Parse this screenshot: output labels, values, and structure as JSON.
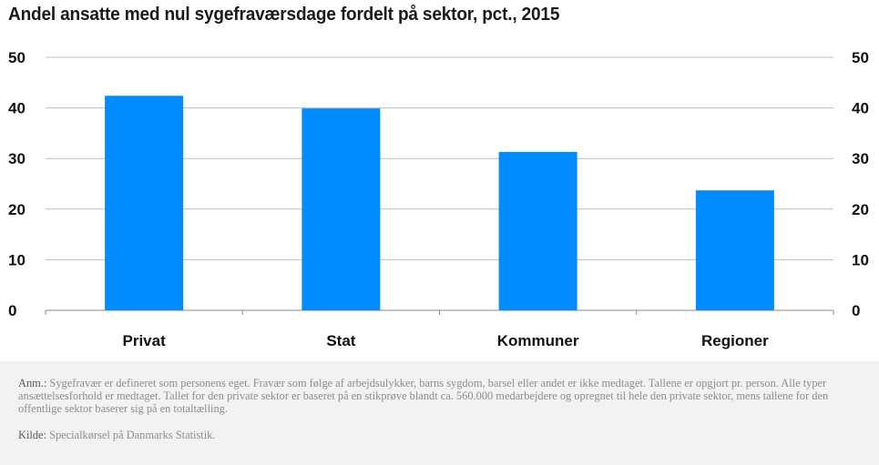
{
  "chart_data": {
    "type": "bar",
    "title": "Andel ansatte med nul sygefraværsdage fordelt på sektor, pct., 2015",
    "categories": [
      "Privat",
      "Stat",
      "Kommuner",
      "Regioner"
    ],
    "values": [
      42.4,
      39.9,
      31.3,
      23.7
    ],
    "ylim": [
      0,
      50
    ],
    "yticks": [
      0,
      10,
      20,
      30,
      40,
      50
    ],
    "xlabel": "",
    "ylabel": "",
    "grid": true,
    "bar_color": "#008cff",
    "axes_labels_both_sides": true
  },
  "notes": {
    "anm_label": "Anm.:",
    "anm_text": " Sygefravær er defineret som personens eget. Fravær som følge af arbejdsulykker, barns sygdom, barsel eller andet er ikke medtaget. Tallene er opgjort pr. person. Alle typer ansættelsesforhold er medtaget. Tallet for den private sektor er baseret på en stikprøve blandt ca. 560.000 medarbejdere og opregnet til hele den private sektor, mens tallene for den offentlige sektor baserer sig på en totaltælling.",
    "kilde_label": "Kilde:",
    "kilde_text": " Specialkørsel på Danmarks Statistik."
  }
}
